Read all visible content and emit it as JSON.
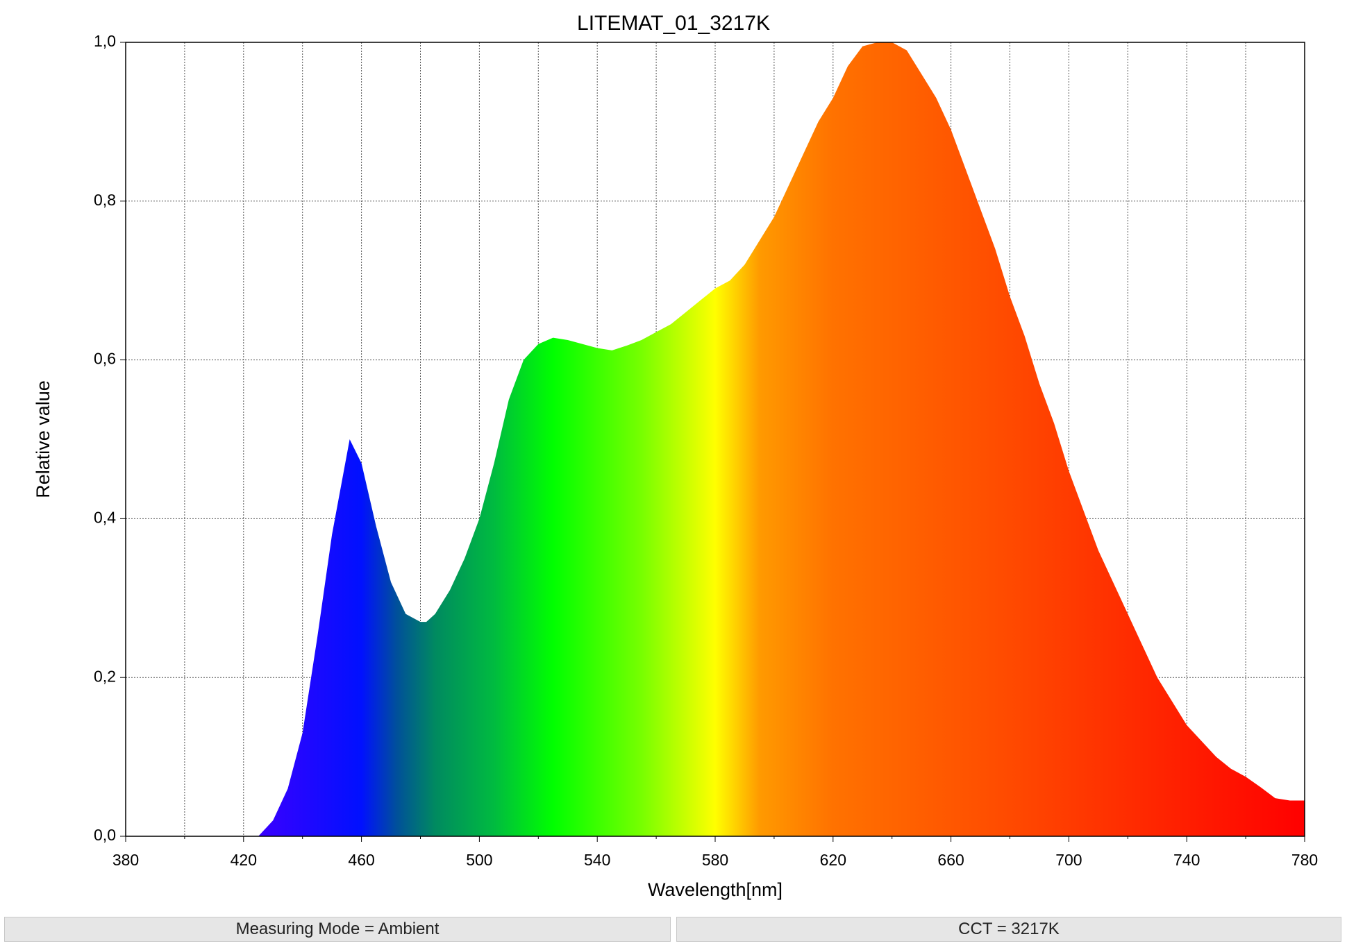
{
  "chart_data": {
    "type": "area",
    "title": "LITEMAT_01_3217K",
    "x_label": "Wavelength[nm]",
    "y_label": "Relative value",
    "x": [
      425,
      430,
      435,
      440,
      445,
      450,
      455,
      456,
      460,
      465,
      470,
      475,
      480,
      482,
      485,
      490,
      495,
      500,
      505,
      510,
      515,
      520,
      525,
      530,
      535,
      540,
      545,
      550,
      555,
      560,
      565,
      570,
      575,
      580,
      585,
      590,
      595,
      600,
      605,
      610,
      615,
      620,
      625,
      630,
      635,
      640,
      645,
      650,
      655,
      660,
      665,
      670,
      675,
      680,
      685,
      690,
      695,
      700,
      705,
      710,
      715,
      720,
      725,
      730,
      735,
      740,
      745,
      750,
      755,
      760,
      765,
      770,
      775,
      780
    ],
    "values": [
      0,
      0.02,
      0.06,
      0.13,
      0.25,
      0.38,
      0.48,
      0.5,
      0.47,
      0.39,
      0.32,
      0.28,
      0.27,
      0.27,
      0.28,
      0.31,
      0.35,
      0.4,
      0.47,
      0.55,
      0.6,
      0.62,
      0.628,
      0.625,
      0.62,
      0.615,
      0.612,
      0.618,
      0.625,
      0.635,
      0.645,
      0.66,
      0.675,
      0.69,
      0.7,
      0.72,
      0.75,
      0.78,
      0.82,
      0.86,
      0.9,
      0.93,
      0.97,
      0.995,
      1.0,
      1.0,
      0.99,
      0.96,
      0.93,
      0.89,
      0.84,
      0.79,
      0.74,
      0.68,
      0.63,
      0.57,
      0.52,
      0.46,
      0.41,
      0.36,
      0.32,
      0.28,
      0.24,
      0.2,
      0.17,
      0.14,
      0.12,
      0.1,
      0.085,
      0.075,
      0.062,
      0.048,
      0.045,
      0.045
    ],
    "fill_gradient": [
      {
        "x": 425,
        "color": "#3a00ff"
      },
      {
        "x": 460,
        "color": "#0010ff"
      },
      {
        "x": 472,
        "color": "#00509a"
      },
      {
        "x": 485,
        "color": "#008a60"
      },
      {
        "x": 505,
        "color": "#00bb40"
      },
      {
        "x": 525,
        "color": "#00ff00"
      },
      {
        "x": 555,
        "color": "#77ff00"
      },
      {
        "x": 580,
        "color": "#ffff00"
      },
      {
        "x": 595,
        "color": "#ff9a00"
      },
      {
        "x": 620,
        "color": "#ff7200"
      },
      {
        "x": 680,
        "color": "#ff4a00"
      },
      {
        "x": 780,
        "color": "#ff0000"
      }
    ],
    "xlim": [
      380,
      780
    ],
    "xticks": [
      380,
      420,
      460,
      500,
      540,
      580,
      620,
      660,
      700,
      740,
      780
    ],
    "x_minor_ticks": [
      400,
      440,
      480,
      520,
      560,
      600,
      640,
      680,
      720,
      760
    ],
    "ylim": [
      0,
      1
    ],
    "yticks": [
      {
        "value": 0,
        "label": "0,0"
      },
      {
        "value": 0.2,
        "label": "0,2"
      },
      {
        "value": 0.4,
        "label": "0,4"
      },
      {
        "value": 0.6,
        "label": "0,6"
      },
      {
        "value": 0.8,
        "label": "0,8"
      },
      {
        "value": 1,
        "label": "1,0"
      }
    ],
    "grid": true
  },
  "status_bar": [
    "Measuring Mode = Ambient",
    "CCT = 3217K"
  ]
}
